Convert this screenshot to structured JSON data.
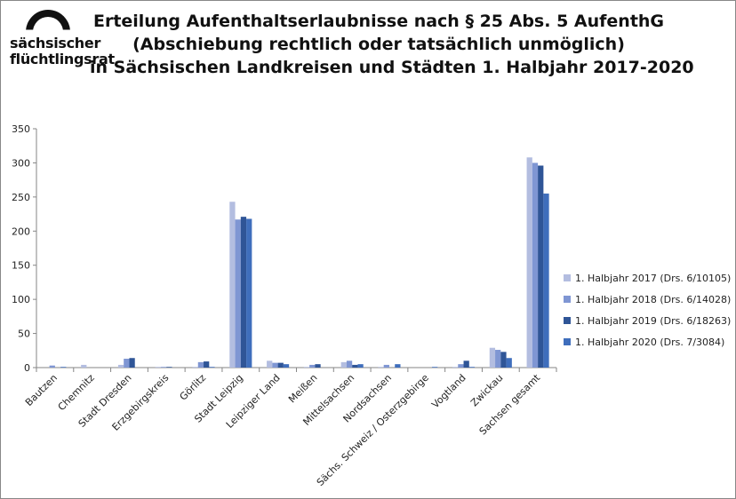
{
  "logo": {
    "line1": "sächsischer",
    "line2": "flüchtlingsrat"
  },
  "chart_data": {
    "type": "bar",
    "title": [
      "Erteilung Aufenthaltserlaubnisse nach § 25 Abs. 5 AufenthG",
      "(Abschiebung rechtlich oder tatsächlich unmöglich)",
      "in Sächsischen Landkreisen und Städten 1. Halbjahr 2017-2020"
    ],
    "categories": [
      "Bautzen",
      "Chemnitz",
      "Stadt Dresden",
      "Erzgebirgskreis",
      "Görlitz",
      "Stadt Leipzig",
      "Leipziger Land",
      "Meißen",
      "Mittelsachsen",
      "Nordsachsen",
      "Sächs. Schweiz / Osterzgebirge",
      "Vogtland",
      "Zwickau",
      "Sachsen gesamt"
    ],
    "series": [
      {
        "name": "1. Halbjahr 2017 (Drs. 6/10105)",
        "color": "#b3bde0",
        "values": [
          0,
          4,
          4,
          1,
          1,
          243,
          10,
          1,
          8,
          1,
          0,
          1,
          29,
          308
        ]
      },
      {
        "name": "1. Halbjahr 2018 (Drs. 6/14028)",
        "color": "#7f96d3",
        "values": [
          3,
          0,
          13,
          1,
          8,
          217,
          7,
          4,
          10,
          4,
          0,
          5,
          26,
          300
        ]
      },
      {
        "name": "1. Halbjahr 2019 (Drs. 6/18263)",
        "color": "#2f5597",
        "values": [
          0,
          0,
          14,
          1,
          9,
          221,
          7,
          5,
          4,
          0,
          0,
          10,
          23,
          296
        ]
      },
      {
        "name": "1. Halbjahr 2020 (Drs. 7/3084)",
        "color": "#3f6ebc",
        "values": [
          1,
          0,
          0,
          0,
          1,
          218,
          5,
          0,
          5,
          5,
          1,
          1,
          14,
          255
        ]
      }
    ],
    "yticks": [
      0,
      50,
      100,
      150,
      200,
      250,
      300,
      350
    ],
    "ylim": [
      0,
      350
    ],
    "xlabel": "",
    "ylabel": "",
    "grid": false,
    "legend": "right"
  }
}
